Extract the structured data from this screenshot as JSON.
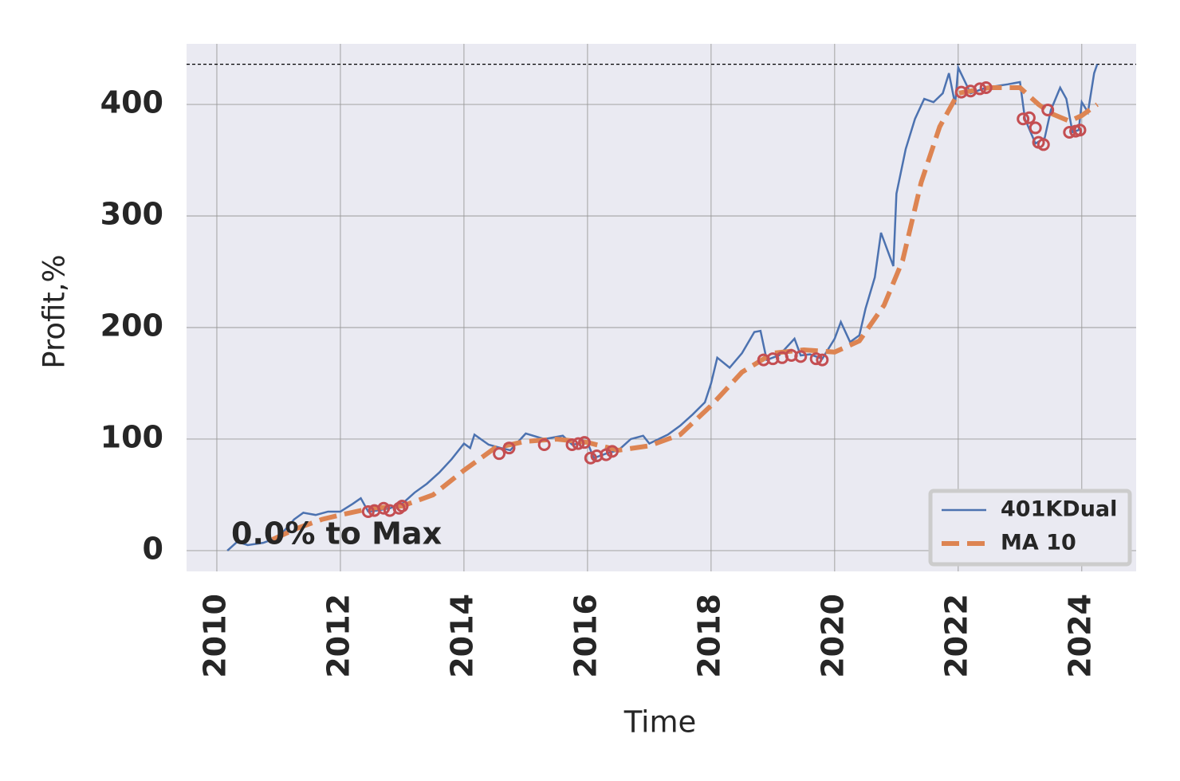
{
  "chart_data": {
    "type": "line",
    "xlabel": "Time",
    "ylabel": "Profit,%",
    "annotation": "0.0% to Max",
    "xlim": [
      2009.51,
      2024.88
    ],
    "ylim": [
      -18.6,
      454.3
    ],
    "xticks": [
      2010,
      2012,
      2014,
      2016,
      2018,
      2020,
      2022,
      2024
    ],
    "yticks": [
      0,
      100,
      200,
      300,
      400
    ],
    "grid": true,
    "legend": "lower right",
    "max_line": 436,
    "series": [
      {
        "name": "401KDual",
        "color": "#4c72b0",
        "dash": false,
        "x": [
          2010.17,
          2010.33,
          2010.5,
          2010.75,
          2011.0,
          2011.25,
          2011.4,
          2011.6,
          2011.8,
          2012.0,
          2012.2,
          2012.33,
          2012.45,
          2012.6,
          2012.8,
          2013.0,
          2013.2,
          2013.4,
          2013.6,
          2013.8,
          2014.0,
          2014.1,
          2014.17,
          2014.4,
          2014.6,
          2014.75,
          2015.0,
          2015.3,
          2015.6,
          2015.75,
          2016.0,
          2016.1,
          2016.3,
          2016.5,
          2016.7,
          2016.9,
          2017.0,
          2017.3,
          2017.5,
          2017.7,
          2017.9,
          2018.0,
          2018.1,
          2018.3,
          2018.5,
          2018.7,
          2018.8,
          2018.9,
          2019.1,
          2019.35,
          2019.45,
          2019.6,
          2019.8,
          2020.0,
          2020.1,
          2020.25,
          2020.4,
          2020.5,
          2020.65,
          2020.75,
          2020.95,
          2021.0,
          2021.15,
          2021.3,
          2021.45,
          2021.6,
          2021.75,
          2021.85,
          2021.95,
          2022.0,
          2022.2,
          2022.45,
          2022.8,
          2023.0,
          2023.08,
          2023.25,
          2023.4,
          2023.5,
          2023.65,
          2023.75,
          2023.85,
          2023.95,
          2024.0,
          2024.1,
          2024.2,
          2024.25
        ],
        "values": [
          0,
          8,
          5,
          7,
          12,
          28,
          34,
          32,
          35,
          35,
          42,
          47,
          35,
          36,
          38,
          42,
          52,
          60,
          70,
          82,
          96,
          92,
          104,
          95,
          92,
          90,
          105,
          100,
          103,
          95,
          97,
          83,
          87,
          90,
          100,
          103,
          96,
          104,
          112,
          122,
          133,
          150,
          173,
          164,
          177,
          196,
          197,
          171,
          175,
          190,
          175,
          176,
          172,
          190,
          205,
          187,
          193,
          217,
          245,
          285,
          255,
          320,
          360,
          387,
          405,
          402,
          410,
          428,
          400,
          433,
          410,
          415,
          418,
          420,
          387,
          365,
          370,
          395,
          415,
          405,
          375,
          377,
          402,
          393,
          428,
          436
        ]
      },
      {
        "name": "MA 10",
        "color": "#dd8452",
        "dash": true,
        "x": [
          2010.9,
          2011.3,
          2011.7,
          2012.0,
          2012.5,
          2013.0,
          2013.5,
          2014.0,
          2014.5,
          2015.0,
          2015.5,
          2016.0,
          2016.5,
          2017.0,
          2017.5,
          2018.0,
          2018.5,
          2019.0,
          2019.5,
          2020.0,
          2020.4,
          2020.8,
          2021.1,
          2021.4,
          2021.7,
          2022.0,
          2022.5,
          2023.0,
          2023.3,
          2023.5,
          2023.8,
          2024.0,
          2024.25
        ],
        "values": [
          10,
          20,
          28,
          32,
          38,
          40,
          50,
          72,
          92,
          98,
          100,
          97,
          90,
          94,
          104,
          130,
          160,
          177,
          180,
          178,
          188,
          220,
          260,
          330,
          380,
          410,
          415,
          415,
          400,
          392,
          385,
          390,
          400
        ]
      }
    ],
    "markers": {
      "color": "#c44e52",
      "x": [
        2012.45,
        2012.55,
        2012.7,
        2012.8,
        2012.95,
        2013.0,
        2014.57,
        2014.73,
        2015.3,
        2015.75,
        2015.85,
        2015.95,
        2016.05,
        2016.15,
        2016.3,
        2016.4,
        2018.85,
        2019.0,
        2019.15,
        2019.3,
        2019.45,
        2019.7,
        2019.8,
        2022.05,
        2022.2,
        2022.35,
        2022.45,
        2023.05,
        2023.15,
        2023.25,
        2023.3,
        2023.38,
        2023.45,
        2023.8,
        2023.9,
        2023.97
      ],
      "values": [
        35,
        36,
        38,
        36,
        38,
        40,
        87,
        92,
        95,
        95,
        96,
        97,
        83,
        85,
        86,
        89,
        171,
        172,
        173,
        175,
        174,
        172,
        171,
        411,
        412,
        414,
        415,
        387,
        388,
        379,
        366,
        364,
        395,
        375,
        376,
        377
      ]
    }
  }
}
